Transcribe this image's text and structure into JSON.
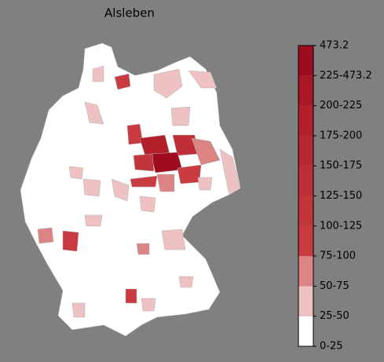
{
  "title": "Alsleben",
  "legend": {
    "labels": [
      "0-25",
      "25-50",
      "50-75",
      "75-100",
      "100-125",
      "125-150",
      "150-175",
      "175-200",
      "200-225",
      "225-473.2",
      "473.2"
    ],
    "colors": [
      "#ffffff",
      "#eec2c2",
      "#dc8484",
      "#c93b40",
      "#c4353b",
      "#bf2e36",
      "#b92730",
      "#b31f2b",
      "#ab1626",
      "#a00b20"
    ]
  }
}
